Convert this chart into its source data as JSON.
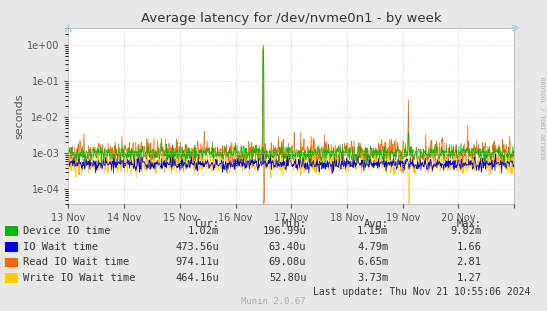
{
  "title": "Average latency for /dev/nvme0n1 - by week",
  "ylabel": "seconds",
  "background_color": "#e8e8e8",
  "plot_bg_color": "#ffffff",
  "grid_color": "#ffbbbb",
  "ytick_labels": [
    "1e-04",
    "1e-03",
    "1e-02",
    "1e-01",
    "1e+00"
  ],
  "yticks": [
    0.0001,
    0.001,
    0.01,
    0.1,
    1.0
  ],
  "xtick_labels": [
    "13 Nov",
    "14 Nov",
    "15 Nov",
    "16 Nov",
    "17 Nov",
    "18 Nov",
    "19 Nov",
    "20 Nov"
  ],
  "legend_labels": [
    "Device IO time",
    "IO Wait time",
    "Read IO Wait time",
    "Write IO Wait time"
  ],
  "legend_colors": [
    "#00bb00",
    "#0000dd",
    "#ff6600",
    "#ffcc00"
  ],
  "table_headers": [
    "Cur:",
    "Min:",
    "Avg:",
    "Max:"
  ],
  "table_data": [
    [
      "1.02m",
      "196.99u",
      "1.15m",
      "9.82m"
    ],
    [
      "473.56u",
      "63.40u",
      "4.79m",
      "1.66"
    ],
    [
      "974.11u",
      "69.08u",
      "6.65m",
      "2.81"
    ],
    [
      "464.16u",
      "52.80u",
      "3.73m",
      "1.27"
    ]
  ],
  "last_update": "Last update: Thu Nov 21 10:55:06 2024",
  "munin_version": "Munin 2.0.67",
  "right_label": "RRDTOOL / TOBI OETIKER",
  "noise_seed": 42
}
